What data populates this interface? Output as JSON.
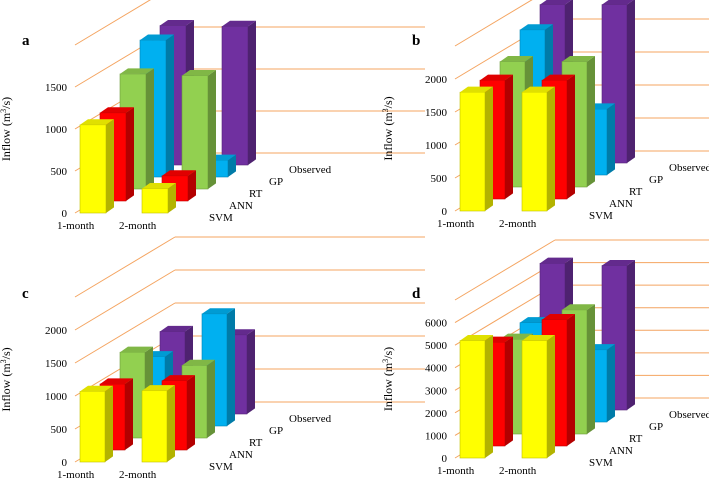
{
  "chart_data": [
    {
      "type": "bar",
      "panel": "a",
      "ylabel_main": "Inflow (m",
      "ylabel_sup": "3",
      "ylabel_tail": "/s)",
      "yticks": [
        "0",
        "500",
        "1000",
        "1500"
      ],
      "ylim": [
        0,
        2000
      ],
      "categories": [
        "1-month",
        "2-month"
      ],
      "series": [
        {
          "name": "SVM",
          "color": "#ffff00",
          "values": [
            1050,
            290
          ]
        },
        {
          "name": "ANN",
          "color": "#ff0000",
          "values": [
            1050,
            300
          ]
        },
        {
          "name": "RT",
          "color": "#92d050",
          "values": [
            1370,
            1350
          ]
        },
        {
          "name": "GP",
          "color": "#00b0f0",
          "values": [
            1630,
            200
          ]
        },
        {
          "name": "Observed",
          "color": "#7030a0",
          "values": [
            1660,
            1650
          ]
        }
      ]
    },
    {
      "type": "bar",
      "panel": "b",
      "ylabel_main": "Inflow (m",
      "ylabel_sup": "3",
      "ylabel_tail": "/s)",
      "yticks": [
        "0",
        "500",
        "1000",
        "1500",
        "2000"
      ],
      "ylim": [
        0,
        2500
      ],
      "categories": [
        "1-month",
        "2-month"
      ],
      "series": [
        {
          "name": "SVM",
          "color": "#ffff00",
          "values": [
            1800,
            1800
          ]
        },
        {
          "name": "ANN",
          "color": "#ff0000",
          "values": [
            1800,
            1800
          ]
        },
        {
          "name": "RT",
          "color": "#92d050",
          "values": [
            1900,
            1900
          ]
        },
        {
          "name": "GP",
          "color": "#00b0f0",
          "values": [
            2200,
            1000
          ]
        },
        {
          "name": "Observed",
          "color": "#7030a0",
          "values": [
            2400,
            2400
          ]
        }
      ]
    },
    {
      "type": "bar",
      "panel": "c",
      "ylabel_main": "Inflow (m",
      "ylabel_sup": "3",
      "ylabel_tail": "/s)",
      "yticks": [
        "0",
        "500",
        "1000",
        "1500",
        "2000"
      ],
      "ylim": [
        0,
        2500
      ],
      "categories": [
        "1-month",
        "2-month"
      ],
      "series": [
        {
          "name": "SVM",
          "color": "#ffff00",
          "values": [
            1070,
            1080
          ]
        },
        {
          "name": "ANN",
          "color": "#ff0000",
          "values": [
            1000,
            1050
          ]
        },
        {
          "name": "RT",
          "color": "#92d050",
          "values": [
            1300,
            1100
          ]
        },
        {
          "name": "GP",
          "color": "#00b0f0",
          "values": [
            1050,
            1700
          ]
        },
        {
          "name": "Observed",
          "color": "#7030a0",
          "values": [
            1250,
            1200
          ]
        }
      ]
    },
    {
      "type": "bar",
      "panel": "d",
      "ylabel_main": "Inflow (m",
      "ylabel_sup": "3",
      "ylabel_tail": "/s)",
      "yticks": [
        "0",
        "1000",
        "2000",
        "3000",
        "4000",
        "5000",
        "6000"
      ],
      "ylim": [
        0,
        7000
      ],
      "categories": [
        "1-month",
        "2-month"
      ],
      "series": [
        {
          "name": "SVM",
          "color": "#ffff00",
          "values": [
            5200,
            5200
          ]
        },
        {
          "name": "ANN",
          "color": "#ff0000",
          "values": [
            4600,
            5600
          ]
        },
        {
          "name": "RT",
          "color": "#92d050",
          "values": [
            4200,
            5500
          ]
        },
        {
          "name": "GP",
          "color": "#00b0f0",
          "values": [
            4400,
            3200
          ]
        },
        {
          "name": "Observed",
          "color": "#7030a0",
          "values": [
            6500,
            6400
          ]
        }
      ]
    }
  ]
}
